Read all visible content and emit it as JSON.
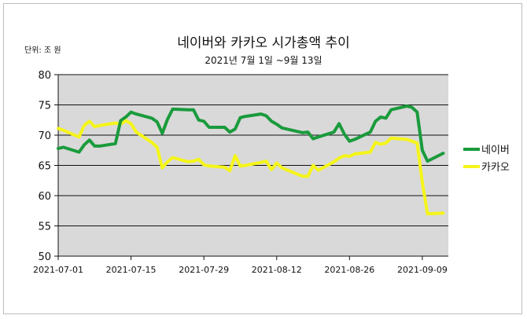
{
  "chart_data": {
    "type": "line",
    "title": "네이버와 카카오 시가총액  추이",
    "subtitle": "2021년 7월 1일 ~9월 13일",
    "unit_label": "단위: 조 원",
    "xlabel": "",
    "ylabel": "",
    "ylim": [
      50,
      80
    ],
    "yticks": [
      "50",
      "55",
      "60",
      "65",
      "70",
      "75",
      "80"
    ],
    "xticks": [
      "2021-07-01",
      "2021-07-15",
      "2021-07-29",
      "2021-08-12",
      "2021-08-26",
      "2021-09-09"
    ],
    "grid": true,
    "legend_position": "right",
    "x": [
      "2021-07-01",
      "2021-07-02",
      "2021-07-05",
      "2021-07-06",
      "2021-07-07",
      "2021-07-08",
      "2021-07-09",
      "2021-07-12",
      "2021-07-13",
      "2021-07-14",
      "2021-07-15",
      "2021-07-16",
      "2021-07-19",
      "2021-07-20",
      "2021-07-21",
      "2021-07-22",
      "2021-07-23",
      "2021-07-26",
      "2021-07-27",
      "2021-07-28",
      "2021-07-29",
      "2021-07-30",
      "2021-08-02",
      "2021-08-03",
      "2021-08-04",
      "2021-08-05",
      "2021-08-06",
      "2021-08-09",
      "2021-08-10",
      "2021-08-11",
      "2021-08-12",
      "2021-08-13",
      "2021-08-17",
      "2021-08-18",
      "2021-08-19",
      "2021-08-20",
      "2021-08-23",
      "2021-08-24",
      "2021-08-25",
      "2021-08-26",
      "2021-08-27",
      "2021-08-30",
      "2021-08-31",
      "2021-09-01",
      "2021-09-02",
      "2021-09-03",
      "2021-09-06",
      "2021-09-07",
      "2021-09-08",
      "2021-09-09",
      "2021-09-10",
      "2021-09-13"
    ],
    "series": [
      {
        "name": "네이버",
        "color": "#1a9b3c",
        "values": [
          67.8,
          68.0,
          67.2,
          68.4,
          69.2,
          68.2,
          68.2,
          68.6,
          72.4,
          73.0,
          73.8,
          73.5,
          72.8,
          72.2,
          70.3,
          72.6,
          74.3,
          74.2,
          74.2,
          72.5,
          72.3,
          71.3,
          71.3,
          70.5,
          71.0,
          72.9,
          73.1,
          73.5,
          73.2,
          72.3,
          71.8,
          71.2,
          70.4,
          70.5,
          69.4,
          69.7,
          70.5,
          71.9,
          70.2,
          69.0,
          69.3,
          70.5,
          72.3,
          73.0,
          72.8,
          74.2,
          74.8,
          74.6,
          73.8,
          67.5,
          65.7,
          67.0
        ]
      },
      {
        "name": "카카오",
        "color": "#f5f51a",
        "values": [
          71.1,
          70.8,
          69.7,
          71.6,
          72.3,
          71.4,
          71.6,
          72.0,
          71.8,
          72.4,
          71.9,
          70.5,
          68.8,
          68.0,
          64.6,
          65.6,
          66.3,
          65.6,
          65.7,
          66.0,
          65.1,
          64.9,
          64.7,
          64.1,
          66.6,
          64.9,
          65.0,
          65.5,
          65.7,
          64.3,
          65.4,
          64.6,
          63.2,
          63.2,
          65.0,
          64.2,
          65.6,
          66.2,
          66.6,
          66.5,
          66.9,
          67.2,
          68.8,
          68.5,
          68.7,
          69.5,
          69.3,
          69.0,
          68.7,
          62.2,
          57.0,
          57.1
        ]
      }
    ]
  }
}
